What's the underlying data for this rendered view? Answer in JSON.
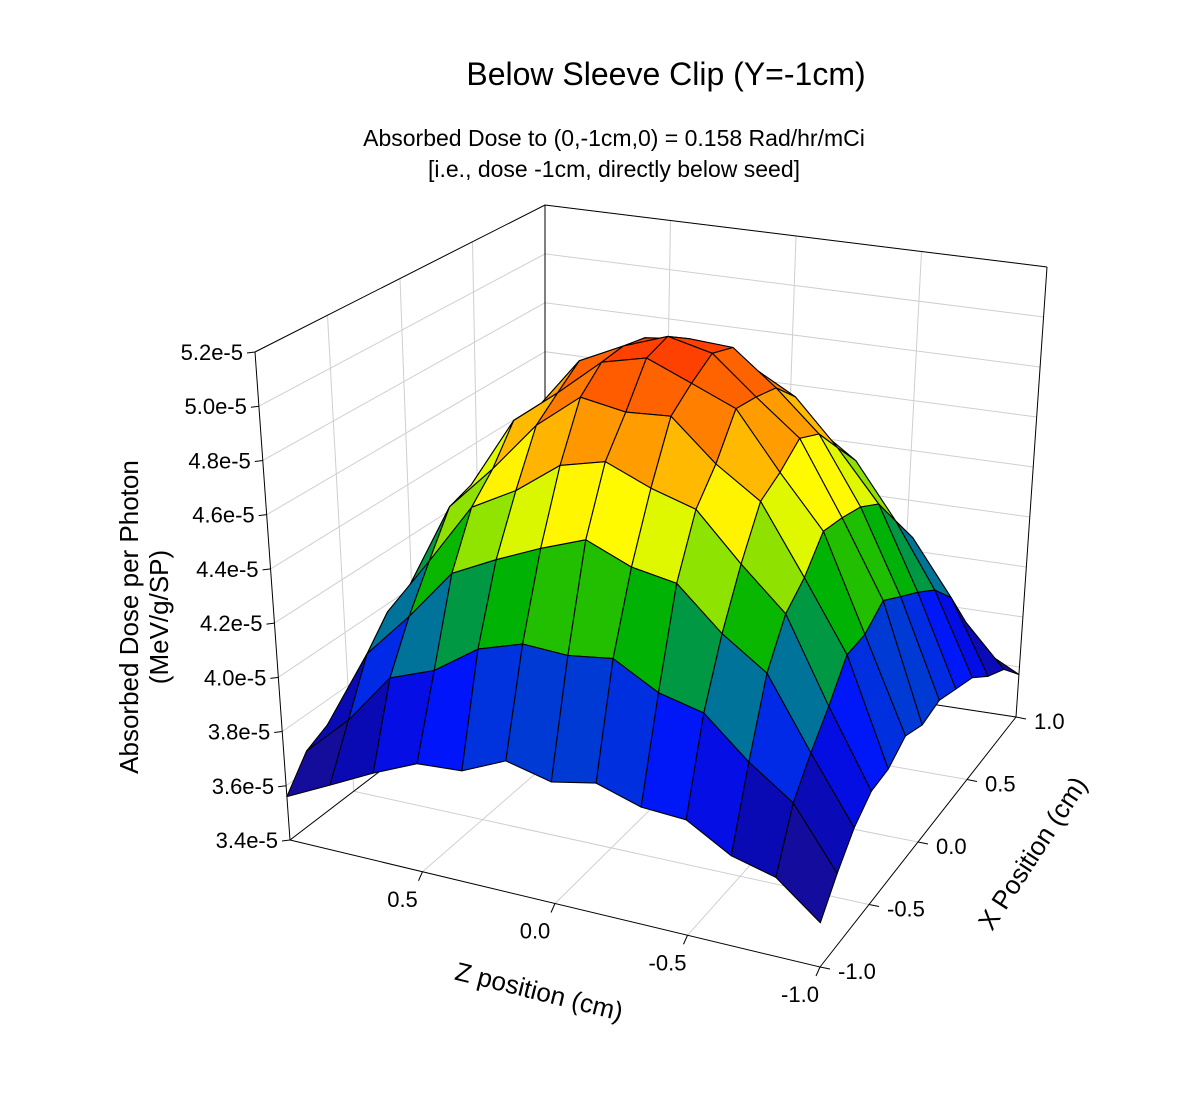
{
  "chart_data": {
    "type": "surface",
    "title": "Below Sleeve Clip (Y=-1cm)",
    "subtitle": [
      "Absorbed Dose to (0,-1cm,0) = 0.158 Rad/hr/mCi",
      "[i.e., dose -1cm, directly below seed]"
    ],
    "xlabel": "X Position (cm)",
    "zlabel": "Z position (cm)",
    "ylabel": [
      "Absorbed Dose per Photon",
      "(MeV/g/SP)"
    ],
    "x_range": [
      -1.0,
      1.0
    ],
    "z_range": [
      -1.0,
      1.0
    ],
    "y_range": [
      3.4e-05,
      5.2e-05
    ],
    "x_ticks": [
      "-1.0",
      "-0.5",
      "0.0",
      "0.5",
      "1.0"
    ],
    "z_ticks": [
      "-1.0",
      "-0.5",
      "0.0",
      "0.5"
    ],
    "y_ticks": [
      "3.4e-5",
      "3.6e-5",
      "3.8e-5",
      "4.0e-5",
      "4.2e-5",
      "4.4e-5",
      "4.6e-5",
      "4.8e-5",
      "5.0e-5",
      "5.2e-5"
    ],
    "grid": true,
    "colorscale": [
      [
        3.5e-05,
        "#22107a"
      ],
      [
        3.8e-05,
        "#0a0ab4"
      ],
      [
        3.95e-05,
        "#0010ff"
      ],
      [
        4.15e-05,
        "#0070a0"
      ],
      [
        4.35e-05,
        "#00b400"
      ],
      [
        4.55e-05,
        "#b8f000"
      ],
      [
        4.65e-05,
        "#ffff00"
      ],
      [
        4.85e-05,
        "#ffa000"
      ],
      [
        5.1e-05,
        "#ff3800"
      ]
    ],
    "grid_x": [
      -1.0,
      -0.833,
      -0.667,
      -0.5,
      -0.333,
      -0.167,
      0.0,
      0.167,
      0.333,
      0.5,
      0.667,
      0.833,
      1.0
    ],
    "grid_z": [
      -1.0,
      -0.833,
      -0.667,
      -0.5,
      -0.333,
      -0.167,
      0.0,
      0.167,
      0.333,
      0.5,
      0.667,
      0.833,
      1.0
    ],
    "values": [
      [
        3.55e-05,
        3.67e-05,
        3.71e-05,
        3.8e-05,
        3.81e-05,
        3.86e-05,
        3.83e-05,
        3.87e-05,
        3.8e-05,
        3.79e-05,
        3.72e-05,
        3.64e-05,
        3.56e-05
      ],
      [
        3.65e-05,
        3.86e-05,
        3.97e-05,
        4.11e-05,
        4.15e-05,
        4.24e-05,
        4.22e-05,
        4.23e-05,
        4.18e-05,
        4.07e-05,
        4.01e-05,
        3.82e-05,
        3.67e-05
      ],
      [
        3.74e-05,
        3.97e-05,
        4.22e-05,
        4.33e-05,
        4.48e-05,
        4.51e-05,
        4.58e-05,
        4.52e-05,
        4.45e-05,
        4.37e-05,
        4.18e-05,
        4.01e-05,
        3.71e-05
      ],
      [
        3.8e-05,
        4.07e-05,
        4.37e-05,
        4.52e-05,
        4.69e-05,
        4.74e-05,
        4.81e-05,
        4.77e-05,
        4.65e-05,
        4.56e-05,
        4.33e-05,
        4.11e-05,
        3.77e-05
      ],
      [
        3.81e-05,
        4.19e-05,
        4.44e-05,
        4.69e-05,
        4.8e-05,
        4.95e-05,
        4.94e-05,
        4.97e-05,
        4.84e-05,
        4.65e-05,
        4.48e-05,
        4.15e-05,
        3.83e-05
      ],
      [
        3.86e-05,
        4.2e-05,
        4.55e-05,
        4.74e-05,
        4.95e-05,
        5.02e-05,
        5.09e-05,
        5.05e-05,
        4.91e-05,
        4.78e-05,
        4.51e-05,
        4.24e-05,
        3.82e-05
      ],
      [
        3.83e-05,
        4.26e-05,
        4.54e-05,
        4.81e-05,
        4.94e-05,
        5.08e-05,
        5.12e-05,
        5.06e-05,
        4.98e-05,
        4.77e-05,
        4.58e-05,
        4.22e-05,
        3.86e-05
      ],
      [
        3.85e-05,
        4.21e-05,
        4.52e-05,
        4.77e-05,
        4.92e-05,
        5.05e-05,
        5.06e-05,
        5.04e-05,
        4.94e-05,
        4.75e-05,
        4.54e-05,
        4.23e-05,
        3.84e-05
      ],
      [
        3.82e-05,
        4.16e-05,
        4.47e-05,
        4.66e-05,
        4.83e-05,
        4.92e-05,
        4.97e-05,
        4.94e-05,
        4.81e-05,
        4.68e-05,
        4.45e-05,
        4.18e-05,
        3.81e-05
      ],
      [
        3.79e-05,
        4.1e-05,
        4.34e-05,
        4.55e-05,
        4.66e-05,
        4.77e-05,
        4.78e-05,
        4.75e-05,
        4.68e-05,
        4.53e-05,
        4.36e-05,
        4.08e-05,
        3.78e-05
      ],
      [
        3.72e-05,
        4e-05,
        4.21e-05,
        4.34e-05,
        4.47e-05,
        4.52e-05,
        4.55e-05,
        4.54e-05,
        4.44e-05,
        4.36e-05,
        4.19e-05,
        3.98e-05,
        3.74e-05
      ],
      [
        3.67e-05,
        3.83e-05,
        4e-05,
        4.08e-05,
        4.18e-05,
        4.21e-05,
        4.25e-05,
        4.22e-05,
        4.16e-05,
        4.1e-05,
        3.98e-05,
        3.85e-05,
        3.65e-05
      ],
      [
        3.57e-05,
        3.65e-05,
        3.74e-05,
        3.77e-05,
        3.83e-05,
        3.83e-05,
        3.86e-05,
        3.85e-05,
        3.81e-05,
        3.77e-05,
        3.74e-05,
        3.67e-05,
        3.54e-05
      ]
    ]
  }
}
